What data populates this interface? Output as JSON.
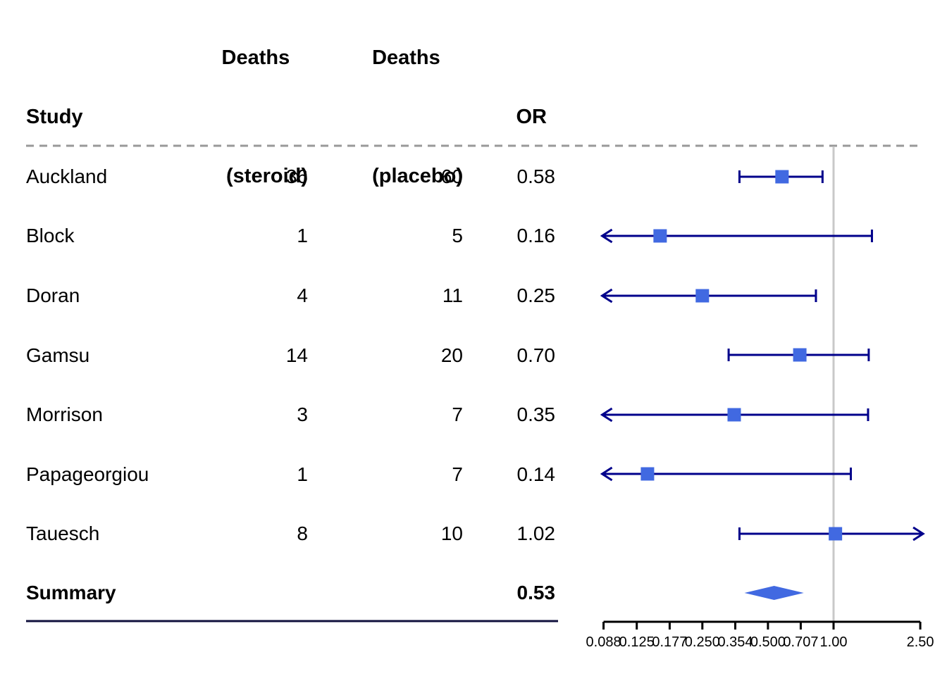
{
  "table": {
    "headers": {
      "study": "Study",
      "steroid_line1": "Deaths",
      "steroid_line2": "(steroid)",
      "placebo_line1": "Deaths",
      "placebo_line2": "(placebo)",
      "or": "OR"
    },
    "rows": [
      {
        "study": "Auckland",
        "steroid": "36",
        "placebo": "60",
        "or": "0.58"
      },
      {
        "study": "Block",
        "steroid": "1",
        "placebo": "5",
        "or": "0.16"
      },
      {
        "study": "Doran",
        "steroid": "4",
        "placebo": "11",
        "or": "0.25"
      },
      {
        "study": "Gamsu",
        "steroid": "14",
        "placebo": "20",
        "or": "0.70"
      },
      {
        "study": "Morrison",
        "steroid": "3",
        "placebo": "7",
        "or": "0.35"
      },
      {
        "study": "Papageorgiou",
        "steroid": "1",
        "placebo": "7",
        "or": "0.14"
      },
      {
        "study": "Tauesch",
        "steroid": "8",
        "placebo": "10",
        "or": "1.02"
      }
    ],
    "summary_row": {
      "study": "Summary",
      "steroid": "",
      "placebo": "",
      "or": "0.53"
    }
  },
  "chart_data": {
    "type": "forest",
    "x_scale": "log2",
    "axis": {
      "min": 0.088,
      "max": 2.5,
      "ticks": [
        0.088,
        0.125,
        0.177,
        0.25,
        0.354,
        0.5,
        0.707,
        1.0,
        2.5
      ],
      "tick_labels": [
        "0.088",
        "0.125",
        "0.177",
        "0.250",
        "0.354",
        "0.500",
        "0.707",
        "1.00",
        "2.50"
      ],
      "reference_line": 1.0
    },
    "studies": [
      {
        "name": "Auckland",
        "or": 0.58,
        "ci_low": 0.37,
        "ci_high": 0.89,
        "arrow_low": false,
        "arrow_high": false
      },
      {
        "name": "Block",
        "or": 0.16,
        "ci_low": 0.02,
        "ci_high": 1.5,
        "arrow_low": true,
        "arrow_high": false
      },
      {
        "name": "Doran",
        "or": 0.25,
        "ci_low": 0.07,
        "ci_high": 0.83,
        "arrow_low": true,
        "arrow_high": false
      },
      {
        "name": "Gamsu",
        "or": 0.7,
        "ci_low": 0.33,
        "ci_high": 1.45,
        "arrow_low": false,
        "arrow_high": false
      },
      {
        "name": "Morrison",
        "or": 0.35,
        "ci_low": 0.09,
        "ci_high": 1.44,
        "arrow_low": true,
        "arrow_high": false
      },
      {
        "name": "Papageorgiou",
        "or": 0.14,
        "ci_low": 0.02,
        "ci_high": 1.2,
        "arrow_low": true,
        "arrow_high": false
      },
      {
        "name": "Tauesch",
        "or": 1.02,
        "ci_low": 0.37,
        "ci_high": 2.77,
        "arrow_low": false,
        "arrow_high": true
      }
    ],
    "summary": {
      "name": "Summary",
      "or": 0.53,
      "ci_low": 0.39,
      "ci_high": 0.73
    }
  },
  "colors": {
    "marker": "#4169e1",
    "ci_line": "#00008b",
    "summary_rule": "#10103c",
    "reference_line": "#c9c9c9",
    "dashed_line": "#999999",
    "axis": "#000000",
    "text": "#000000"
  }
}
